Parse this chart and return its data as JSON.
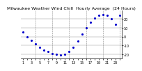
{
  "title": "Milwaukee Weather Wind Chill  Hourly Average  (24 Hours)",
  "hours": [
    1,
    2,
    3,
    4,
    5,
    6,
    7,
    8,
    9,
    10,
    11,
    12,
    13,
    14,
    15,
    16,
    17,
    18,
    19,
    20,
    21,
    22,
    23,
    24
  ],
  "values": [
    5,
    0,
    -4,
    -8,
    -12,
    -15,
    -17,
    -19,
    -20,
    -21,
    -20,
    -17,
    -12,
    -5,
    3,
    10,
    16,
    21,
    24,
    25,
    24,
    20,
    14,
    24
  ],
  "dot_color": "#0000cc",
  "bg_color": "#ffffff",
  "ylim": [
    -25,
    30
  ],
  "yticks": [
    -20,
    -10,
    0,
    10,
    20
  ],
  "grid_color": "#888888",
  "title_color": "#000000",
  "title_fontsize": 4.5,
  "tick_fontsize": 3.5
}
